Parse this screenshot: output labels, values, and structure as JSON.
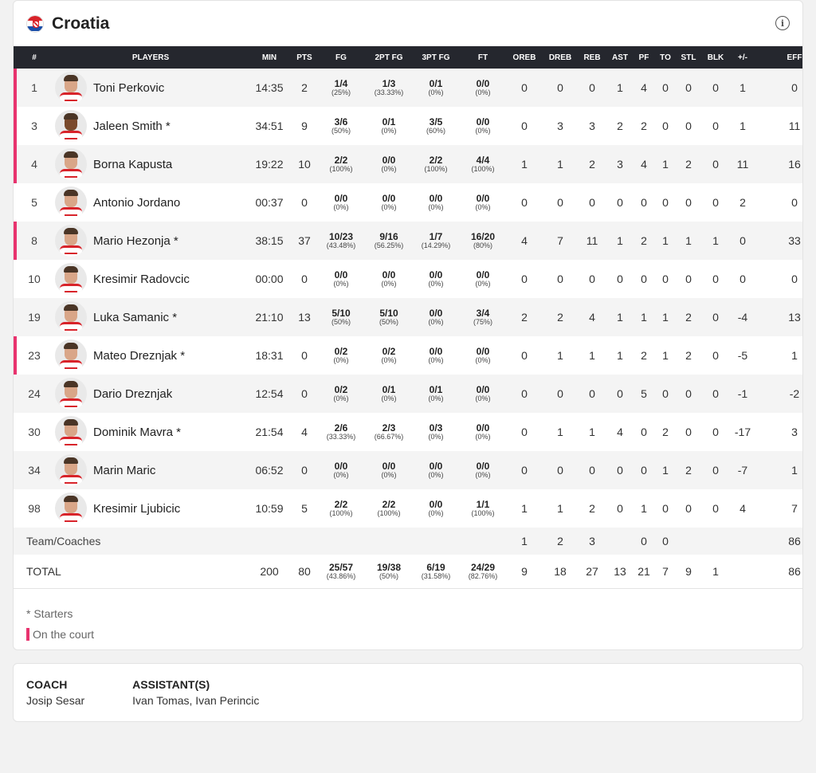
{
  "team": {
    "name": "Croatia",
    "flag_colors": [
      "#d8232a",
      "#ffffff",
      "#1a4ea8"
    ]
  },
  "accent": "#e8336e",
  "headers": [
    "#",
    "PLAYERS",
    "MIN",
    "PTS",
    "FG",
    "2PT FG",
    "3PT FG",
    "FT",
    "OREB",
    "DREB",
    "REB",
    "AST",
    "PF",
    "TO",
    "STL",
    "BLK",
    "+/-",
    "EFF"
  ],
  "players": [
    {
      "num": "1",
      "name": "Toni Perkovic",
      "on_court": true,
      "min": "14:35",
      "pts": "2",
      "fg": [
        "1/4",
        "(25%)"
      ],
      "p2": [
        "1/3",
        "(33.33%)"
      ],
      "p3": [
        "0/1",
        "(0%)"
      ],
      "ft": [
        "0/0",
        "(0%)"
      ],
      "oreb": "0",
      "dreb": "0",
      "reb": "0",
      "ast": "1",
      "pf": "4",
      "to": "0",
      "stl": "0",
      "blk": "0",
      "pm": "1",
      "eff": "0"
    },
    {
      "num": "3",
      "name": "Jaleen Smith *",
      "on_court": true,
      "min": "34:51",
      "pts": "9",
      "fg": [
        "3/6",
        "(50%)"
      ],
      "p2": [
        "0/1",
        "(0%)"
      ],
      "p3": [
        "3/5",
        "(60%)"
      ],
      "ft": [
        "0/0",
        "(0%)"
      ],
      "oreb": "0",
      "dreb": "3",
      "reb": "3",
      "ast": "2",
      "pf": "2",
      "to": "0",
      "stl": "0",
      "blk": "0",
      "pm": "1",
      "eff": "11"
    },
    {
      "num": "4",
      "name": "Borna Kapusta",
      "on_court": true,
      "min": "19:22",
      "pts": "10",
      "fg": [
        "2/2",
        "(100%)"
      ],
      "p2": [
        "0/0",
        "(0%)"
      ],
      "p3": [
        "2/2",
        "(100%)"
      ],
      "ft": [
        "4/4",
        "(100%)"
      ],
      "oreb": "1",
      "dreb": "1",
      "reb": "2",
      "ast": "3",
      "pf": "4",
      "to": "1",
      "stl": "2",
      "blk": "0",
      "pm": "11",
      "eff": "16"
    },
    {
      "num": "5",
      "name": "Antonio Jordano",
      "on_court": false,
      "min": "00:37",
      "pts": "0",
      "fg": [
        "0/0",
        "(0%)"
      ],
      "p2": [
        "0/0",
        "(0%)"
      ],
      "p3": [
        "0/0",
        "(0%)"
      ],
      "ft": [
        "0/0",
        "(0%)"
      ],
      "oreb": "0",
      "dreb": "0",
      "reb": "0",
      "ast": "0",
      "pf": "0",
      "to": "0",
      "stl": "0",
      "blk": "0",
      "pm": "2",
      "eff": "0"
    },
    {
      "num": "8",
      "name": "Mario Hezonja *",
      "on_court": true,
      "min": "38:15",
      "pts": "37",
      "fg": [
        "10/23",
        "(43.48%)"
      ],
      "p2": [
        "9/16",
        "(56.25%)"
      ],
      "p3": [
        "1/7",
        "(14.29%)"
      ],
      "ft": [
        "16/20",
        "(80%)"
      ],
      "oreb": "4",
      "dreb": "7",
      "reb": "11",
      "ast": "1",
      "pf": "2",
      "to": "1",
      "stl": "1",
      "blk": "1",
      "pm": "0",
      "eff": "33"
    },
    {
      "num": "10",
      "name": "Kresimir Radovcic",
      "on_court": false,
      "min": "00:00",
      "pts": "0",
      "fg": [
        "0/0",
        "(0%)"
      ],
      "p2": [
        "0/0",
        "(0%)"
      ],
      "p3": [
        "0/0",
        "(0%)"
      ],
      "ft": [
        "0/0",
        "(0%)"
      ],
      "oreb": "0",
      "dreb": "0",
      "reb": "0",
      "ast": "0",
      "pf": "0",
      "to": "0",
      "stl": "0",
      "blk": "0",
      "pm": "0",
      "eff": "0"
    },
    {
      "num": "19",
      "name": "Luka Samanic *",
      "on_court": false,
      "min": "21:10",
      "pts": "13",
      "fg": [
        "5/10",
        "(50%)"
      ],
      "p2": [
        "5/10",
        "(50%)"
      ],
      "p3": [
        "0/0",
        "(0%)"
      ],
      "ft": [
        "3/4",
        "(75%)"
      ],
      "oreb": "2",
      "dreb": "2",
      "reb": "4",
      "ast": "1",
      "pf": "1",
      "to": "1",
      "stl": "2",
      "blk": "0",
      "pm": "-4",
      "eff": "13"
    },
    {
      "num": "23",
      "name": "Mateo Dreznjak *",
      "on_court": true,
      "min": "18:31",
      "pts": "0",
      "fg": [
        "0/2",
        "(0%)"
      ],
      "p2": [
        "0/2",
        "(0%)"
      ],
      "p3": [
        "0/0",
        "(0%)"
      ],
      "ft": [
        "0/0",
        "(0%)"
      ],
      "oreb": "0",
      "dreb": "1",
      "reb": "1",
      "ast": "1",
      "pf": "2",
      "to": "1",
      "stl": "2",
      "blk": "0",
      "pm": "-5",
      "eff": "1"
    },
    {
      "num": "24",
      "name": "Dario Dreznjak",
      "on_court": false,
      "min": "12:54",
      "pts": "0",
      "fg": [
        "0/2",
        "(0%)"
      ],
      "p2": [
        "0/1",
        "(0%)"
      ],
      "p3": [
        "0/1",
        "(0%)"
      ],
      "ft": [
        "0/0",
        "(0%)"
      ],
      "oreb": "0",
      "dreb": "0",
      "reb": "0",
      "ast": "0",
      "pf": "5",
      "to": "0",
      "stl": "0",
      "blk": "0",
      "pm": "-1",
      "eff": "-2"
    },
    {
      "num": "30",
      "name": "Dominik Mavra *",
      "on_court": false,
      "min": "21:54",
      "pts": "4",
      "fg": [
        "2/6",
        "(33.33%)"
      ],
      "p2": [
        "2/3",
        "(66.67%)"
      ],
      "p3": [
        "0/3",
        "(0%)"
      ],
      "ft": [
        "0/0",
        "(0%)"
      ],
      "oreb": "0",
      "dreb": "1",
      "reb": "1",
      "ast": "4",
      "pf": "0",
      "to": "2",
      "stl": "0",
      "blk": "0",
      "pm": "-17",
      "eff": "3"
    },
    {
      "num": "34",
      "name": "Marin Maric",
      "on_court": false,
      "min": "06:52",
      "pts": "0",
      "fg": [
        "0/0",
        "(0%)"
      ],
      "p2": [
        "0/0",
        "(0%)"
      ],
      "p3": [
        "0/0",
        "(0%)"
      ],
      "ft": [
        "0/0",
        "(0%)"
      ],
      "oreb": "0",
      "dreb": "0",
      "reb": "0",
      "ast": "0",
      "pf": "0",
      "to": "1",
      "stl": "2",
      "blk": "0",
      "pm": "-7",
      "eff": "1"
    },
    {
      "num": "98",
      "name": "Kresimir Ljubicic",
      "on_court": false,
      "min": "10:59",
      "pts": "5",
      "fg": [
        "2/2",
        "(100%)"
      ],
      "p2": [
        "2/2",
        "(100%)"
      ],
      "p3": [
        "0/0",
        "(0%)"
      ],
      "ft": [
        "1/1",
        "(100%)"
      ],
      "oreb": "1",
      "dreb": "1",
      "reb": "2",
      "ast": "0",
      "pf": "1",
      "to": "0",
      "stl": "0",
      "blk": "0",
      "pm": "4",
      "eff": "7"
    }
  ],
  "team_row": {
    "label": "Team/Coaches",
    "oreb": "1",
    "dreb": "2",
    "reb": "3",
    "pf": "0",
    "to": "0",
    "eff": "86"
  },
  "total_row": {
    "label": "TOTAL",
    "min": "200",
    "pts": "80",
    "fg": [
      "25/57",
      "(43.86%)"
    ],
    "p2": [
      "19/38",
      "(50%)"
    ],
    "p3": [
      "6/19",
      "(31.58%)"
    ],
    "ft": [
      "24/29",
      "(82.76%)"
    ],
    "oreb": "9",
    "dreb": "18",
    "reb": "27",
    "ast": "13",
    "pf": "21",
    "to": "7",
    "stl": "9",
    "blk": "1",
    "eff": "86"
  },
  "legend": {
    "starters": "* Starters",
    "on_court": "On the court"
  },
  "coach": {
    "coach_label": "COACH",
    "coach_name": "Josip Sesar",
    "assistants_label": "ASSISTANT(S)",
    "assistants_names": "Ivan Tomas, Ivan Perincic"
  }
}
